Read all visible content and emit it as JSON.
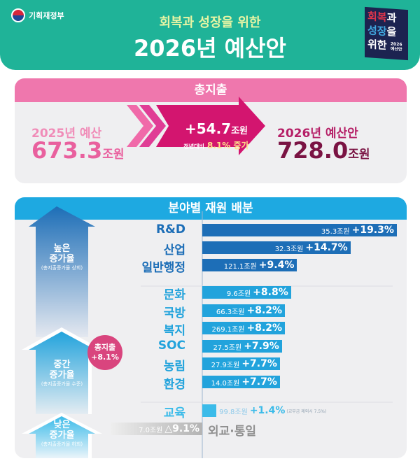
{
  "header": {
    "ministry": "기획재정부",
    "subtitle": "회복과 성장을 위한",
    "title": "2026년 예산안",
    "badge": {
      "line1a": "회복",
      "line1b": "과",
      "line2a": "성장",
      "line2b": "을",
      "line3": "위한",
      "year": "2026",
      "label": "예산안"
    }
  },
  "total": {
    "heading": "총지출",
    "prev_label": "2025년 예산",
    "prev_value": "673.3",
    "unit": "조원",
    "increase": "+54.7",
    "increase_unit": "조원",
    "yoy_label": "전년대비",
    "yoy_value": "8.1% 증가",
    "next_label": "2026년 예산안",
    "next_value": "728.0"
  },
  "allocation": {
    "heading": "분야별 재원 배분",
    "tiers": [
      {
        "title": "높은\n증가율",
        "note": "(총지출증가율 상회)"
      },
      {
        "title": "중간\n증가율",
        "note": "(총지출증가율 수준)"
      },
      {
        "title": "낮은\n증가율",
        "note": "(총지출증가율 하회)"
      }
    ],
    "total_badge": {
      "label": "총지출",
      "value": "+8.1%"
    },
    "colors": {
      "high": "#1d6eb7",
      "mid": "#22a3dc",
      "low": "#3bbbe9",
      "neg": "#b9b9b9"
    }
  },
  "chart_data": {
    "type": "bar",
    "orientation": "horizontal",
    "unit_amount": "조원",
    "categories": [
      "R&D",
      "산업",
      "일반행정",
      "문화",
      "국방",
      "복지",
      "SOC",
      "농림",
      "환경",
      "교육",
      "외교·통일"
    ],
    "amounts": [
      35.3,
      32.3,
      121.1,
      9.6,
      66.3,
      269.1,
      27.5,
      27.9,
      14.0,
      99.8,
      7.0
    ],
    "growth_pct": [
      19.3,
      14.7,
      9.4,
      8.8,
      8.2,
      8.2,
      7.9,
      7.7,
      7.7,
      1.4,
      -9.1
    ],
    "growth_labels": [
      "+19.3%",
      "+14.7%",
      "+9.4%",
      "+8.8%",
      "+8.2%",
      "+8.2%",
      "+7.9%",
      "+7.7%",
      "+7.7%",
      "+1.4%",
      "△9.1%"
    ],
    "tier": [
      "high",
      "high",
      "high",
      "mid",
      "mid",
      "mid",
      "mid",
      "mid",
      "mid",
      "low",
      "low"
    ],
    "notes": {
      "교육": "(교부금 제외시 7.5%)"
    }
  }
}
